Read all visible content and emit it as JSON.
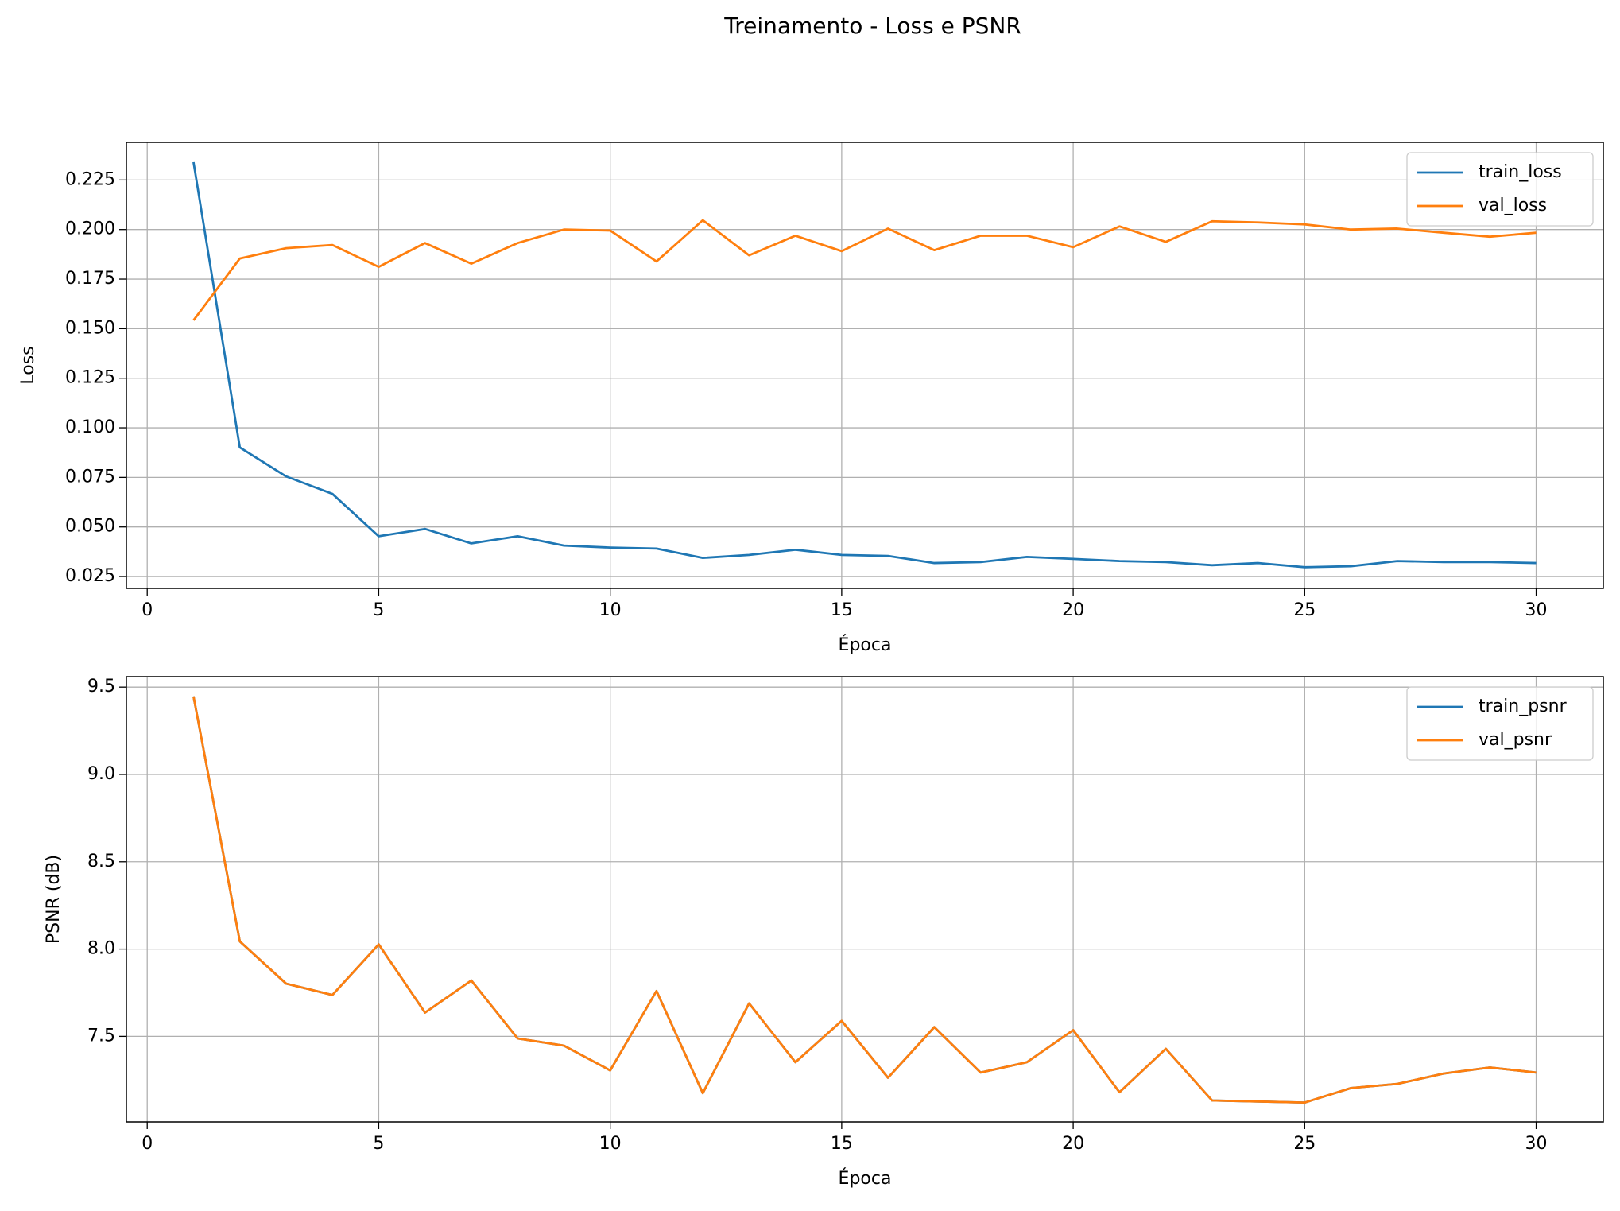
{
  "title": "Treinamento - Loss e PSNR",
  "chart_data": [
    {
      "type": "line",
      "xlabel": "Época",
      "ylabel": "Loss",
      "x": [
        1,
        2,
        3,
        4,
        5,
        6,
        7,
        8,
        9,
        10,
        11,
        12,
        13,
        14,
        15,
        16,
        17,
        18,
        19,
        20,
        21,
        22,
        23,
        24,
        25,
        26,
        27,
        28,
        29,
        30
      ],
      "series": [
        {
          "name": "train_loss",
          "color": "#1f77b4",
          "values": [
            0.234,
            0.0901,
            0.0755,
            0.0667,
            0.0453,
            0.049,
            0.0417,
            0.0453,
            0.0406,
            0.0396,
            0.0391,
            0.0344,
            0.0359,
            0.0385,
            0.0359,
            0.0354,
            0.0318,
            0.0323,
            0.0349,
            0.0339,
            0.0328,
            0.0323,
            0.0307,
            0.0318,
            0.0297,
            0.0302,
            0.0328,
            0.0323,
            0.0323,
            0.0318
          ]
        },
        {
          "name": "val_loss",
          "color": "#ff7f0e",
          "values": [
            0.1542,
            0.1854,
            0.1906,
            0.1922,
            0.1812,
            0.1932,
            0.1828,
            0.1932,
            0.2,
            0.1995,
            0.1839,
            0.2047,
            0.187,
            0.1969,
            0.1891,
            0.2005,
            0.1896,
            0.1969,
            0.1969,
            0.1911,
            0.2016,
            0.1938,
            0.2042,
            0.2036,
            0.2026,
            0.2,
            0.2005,
            0.1984,
            0.1964,
            0.1984
          ]
        }
      ],
      "xlim": [
        -0.45,
        31.45
      ],
      "xticks": [
        0,
        5,
        10,
        15,
        20,
        25,
        30
      ],
      "ylim": [
        0.019,
        0.244
      ],
      "yticks": [
        0.025,
        {
          "value": 0.05,
          "label": "0.050"
        },
        0.075,
        {
          "value": 0.1,
          "label": "0.100"
        },
        0.125,
        {
          "value": 0.15,
          "label": "0.150"
        },
        0.175,
        {
          "value": 0.2,
          "label": "0.200"
        },
        0.225
      ],
      "grid": true,
      "legend": "upper right"
    },
    {
      "type": "line",
      "xlabel": "Época",
      "ylabel": "PSNR (dB)",
      "x": [
        1,
        2,
        3,
        4,
        5,
        6,
        7,
        8,
        9,
        10,
        11,
        12,
        13,
        14,
        15,
        16,
        17,
        18,
        19,
        20,
        21,
        22,
        23,
        24,
        25,
        26,
        27,
        28,
        29,
        30
      ],
      "series": [
        {
          "name": "train_psnr",
          "color": "#1f77b4",
          "values": [
            9.447,
            8.044,
            7.802,
            7.737,
            8.027,
            7.636,
            7.82,
            7.488,
            7.447,
            7.305,
            7.76,
            7.175,
            7.689,
            7.352,
            7.589,
            7.263,
            7.553,
            7.293,
            7.352,
            7.536,
            7.18,
            7.429,
            7.133,
            7.127,
            7.121,
            7.204,
            7.228,
            7.287,
            7.322,
            7.293
          ]
        },
        {
          "name": "val_psnr",
          "color": "#ff7f0e",
          "values": [
            9.447,
            8.044,
            7.802,
            7.737,
            8.027,
            7.636,
            7.82,
            7.488,
            7.447,
            7.305,
            7.76,
            7.175,
            7.689,
            7.352,
            7.589,
            7.263,
            7.553,
            7.293,
            7.352,
            7.536,
            7.18,
            7.429,
            7.133,
            7.127,
            7.121,
            7.204,
            7.228,
            7.287,
            7.322,
            7.293
          ]
        }
      ],
      "xlim": [
        -0.45,
        31.45
      ],
      "xticks": [
        0,
        5,
        10,
        15,
        20,
        25,
        30
      ],
      "ylim": [
        7.01,
        9.56
      ],
      "yticks": [
        7.5,
        {
          "value": 8,
          "label": "8.0"
        },
        8.5,
        {
          "value": 9,
          "label": "9.0"
        },
        9.5
      ],
      "grid": true,
      "legend": "upper right"
    }
  ]
}
